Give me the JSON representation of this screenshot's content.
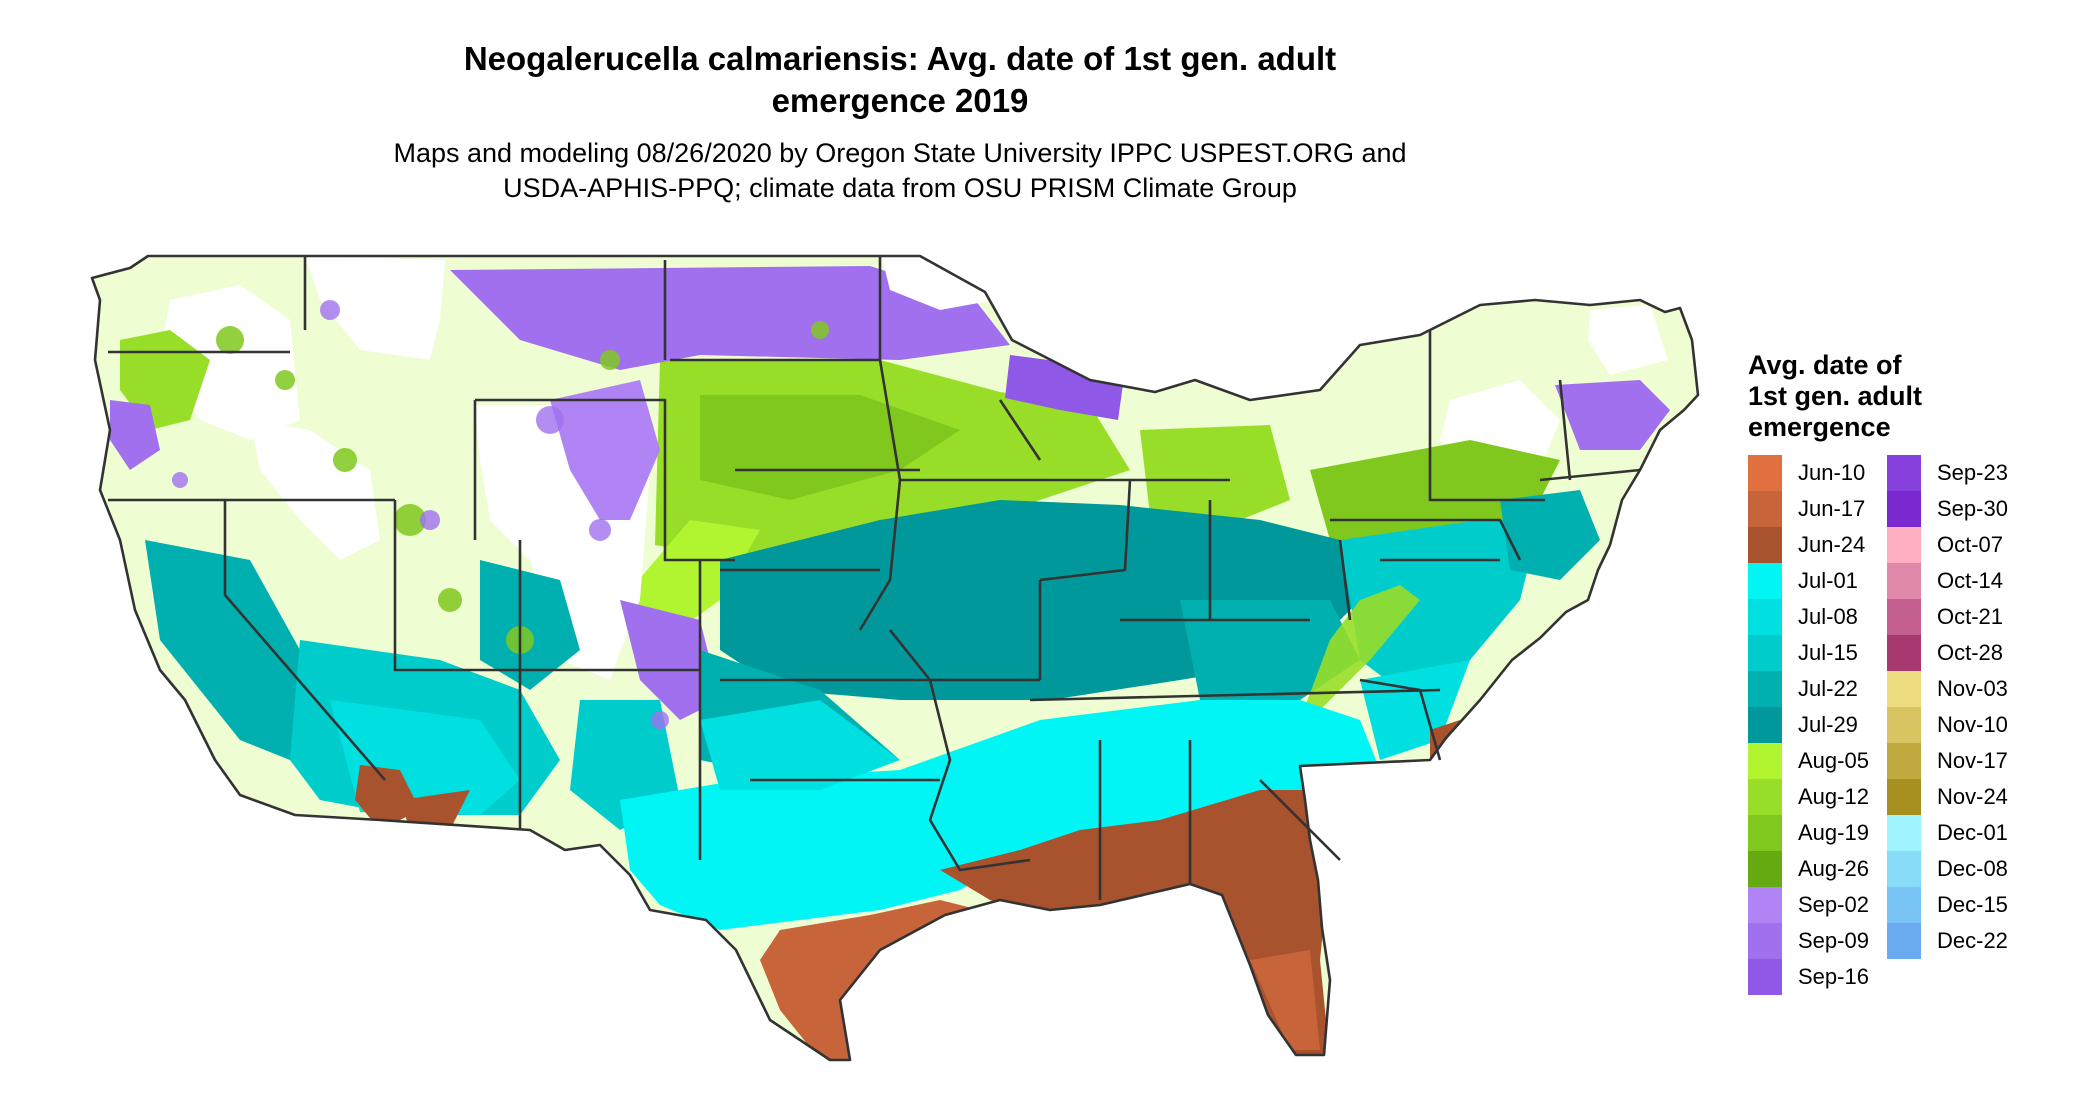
{
  "title_line1": "Neogalerucella calmariensis: Avg. date of 1st gen. adult",
  "title_line2": "emergence 2019",
  "subtitle_line1": "Maps and modeling 08/26/2020 by Oregon State University IPPC USPEST.ORG and",
  "subtitle_line2": "USDA-APHIS-PPQ; climate data from OSU PRISM Climate Group",
  "legend": {
    "title_line1": "Avg. date of",
    "title_line2": "1st gen. adult",
    "title_line3": "emergence",
    "column1": [
      {
        "label": "Jun-10",
        "color": "#e07040"
      },
      {
        "label": "Jun-17",
        "color": "#c8643a"
      },
      {
        "label": "Jun-24",
        "color": "#a8522e"
      },
      {
        "label": "Jul-01",
        "color": "#00f5f5"
      },
      {
        "label": "Jul-08",
        "color": "#00e0e0"
      },
      {
        "label": "Jul-15",
        "color": "#00cccc"
      },
      {
        "label": "Jul-22",
        "color": "#00b0b0"
      },
      {
        "label": "Jul-29",
        "color": "#00989a"
      },
      {
        "label": "Aug-05",
        "color": "#b0f530"
      },
      {
        "label": "Aug-12",
        "color": "#98de28"
      },
      {
        "label": "Aug-19",
        "color": "#80c81e"
      },
      {
        "label": "Aug-26",
        "color": "#66aa12"
      },
      {
        "label": "Sep-02",
        "color": "#b084f5"
      },
      {
        "label": "Sep-09",
        "color": "#a070ee"
      },
      {
        "label": "Sep-16",
        "color": "#9058e6"
      }
    ],
    "column2": [
      {
        "label": "Sep-23",
        "color": "#8840dc"
      },
      {
        "label": "Sep-30",
        "color": "#7a28d0"
      },
      {
        "label": "Oct-07",
        "color": "#ffb0c0"
      },
      {
        "label": "Oct-14",
        "color": "#e088a8"
      },
      {
        "label": "Oct-21",
        "color": "#c46090"
      },
      {
        "label": "Oct-28",
        "color": "#a83870"
      },
      {
        "label": "Nov-03",
        "color": "#eedc80"
      },
      {
        "label": "Nov-10",
        "color": "#d8c460"
      },
      {
        "label": "Nov-17",
        "color": "#c0aa40"
      },
      {
        "label": "Nov-24",
        "color": "#a89020"
      },
      {
        "label": "Dec-01",
        "color": "#a0f4ff"
      },
      {
        "label": "Dec-08",
        "color": "#88dcf8"
      },
      {
        "label": "Dec-15",
        "color": "#78c4f4"
      },
      {
        "label": "Dec-22",
        "color": "#6aaaf0"
      }
    ]
  }
}
